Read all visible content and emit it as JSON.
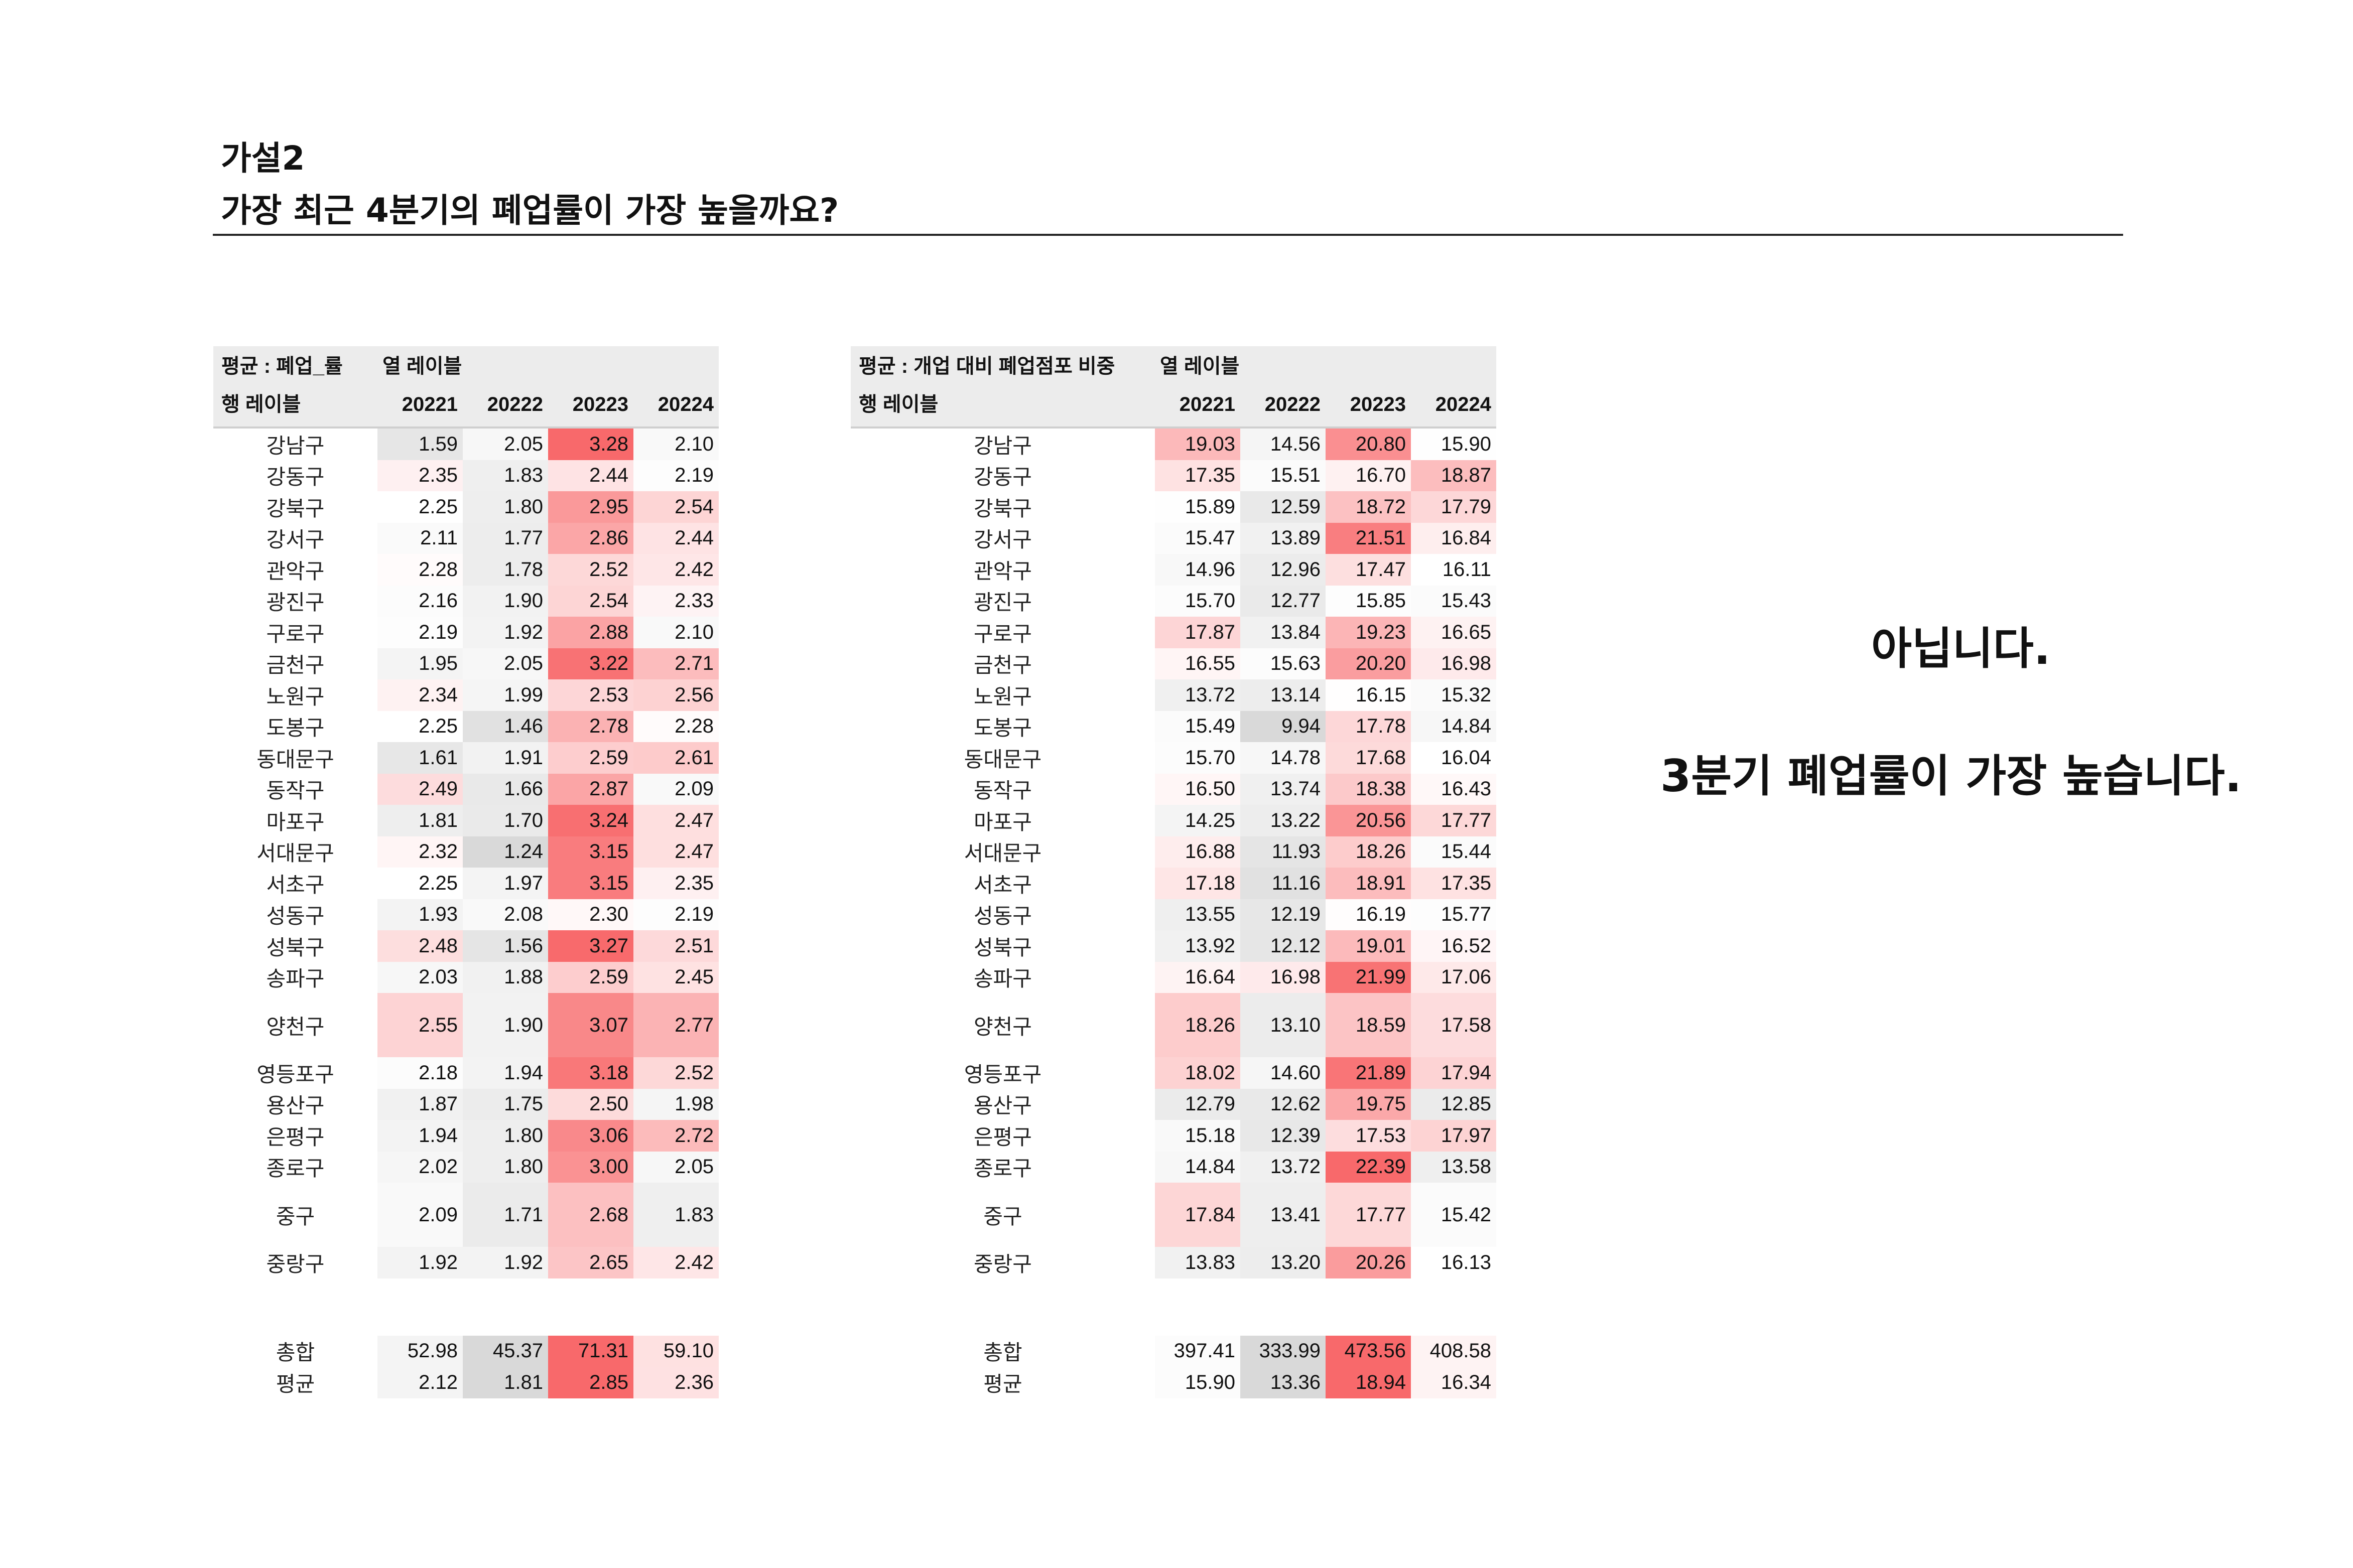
{
  "heading": {
    "line1": "가설2",
    "line2": "가장 최근 4분기의 폐업률이 가장 높을까요?"
  },
  "table_closure_rate": {
    "value_field": "평균 : 폐업_률",
    "column_label": "열 레이블",
    "row_label": "행 레이블",
    "columns": [
      "20221",
      "20222",
      "20223",
      "20224"
    ],
    "rows": [
      {
        "name": "강남구",
        "values": [
          "1.59",
          "2.05",
          "3.28",
          "2.10"
        ]
      },
      {
        "name": "강동구",
        "values": [
          "2.35",
          "1.83",
          "2.44",
          "2.19"
        ]
      },
      {
        "name": "강북구",
        "values": [
          "2.25",
          "1.80",
          "2.95",
          "2.54"
        ]
      },
      {
        "name": "강서구",
        "values": [
          "2.11",
          "1.77",
          "2.86",
          "2.44"
        ]
      },
      {
        "name": "관악구",
        "values": [
          "2.28",
          "1.78",
          "2.52",
          "2.42"
        ]
      },
      {
        "name": "광진구",
        "values": [
          "2.16",
          "1.90",
          "2.54",
          "2.33"
        ]
      },
      {
        "name": "구로구",
        "values": [
          "2.19",
          "1.92",
          "2.88",
          "2.10"
        ]
      },
      {
        "name": "금천구",
        "values": [
          "1.95",
          "2.05",
          "3.22",
          "2.71"
        ]
      },
      {
        "name": "노원구",
        "values": [
          "2.34",
          "1.99",
          "2.53",
          "2.56"
        ]
      },
      {
        "name": "도봉구",
        "values": [
          "2.25",
          "1.46",
          "2.78",
          "2.28"
        ]
      },
      {
        "name": "동대문구",
        "values": [
          "1.61",
          "1.91",
          "2.59",
          "2.61"
        ]
      },
      {
        "name": "동작구",
        "values": [
          "2.49",
          "1.66",
          "2.87",
          "2.09"
        ]
      },
      {
        "name": "마포구",
        "values": [
          "1.81",
          "1.70",
          "3.24",
          "2.47"
        ]
      },
      {
        "name": "서대문구",
        "values": [
          "2.32",
          "1.24",
          "3.15",
          "2.47"
        ]
      },
      {
        "name": "서초구",
        "values": [
          "2.25",
          "1.97",
          "3.15",
          "2.35"
        ]
      },
      {
        "name": "성동구",
        "values": [
          "1.93",
          "2.08",
          "2.30",
          "2.19"
        ]
      },
      {
        "name": "성북구",
        "values": [
          "2.48",
          "1.56",
          "3.27",
          "2.51"
        ]
      },
      {
        "name": "송파구",
        "values": [
          "2.03",
          "1.88",
          "2.59",
          "2.45"
        ]
      },
      {
        "name": "양천구",
        "values": [
          "2.55",
          "1.90",
          "3.07",
          "2.77"
        ]
      },
      {
        "name": "영등포구",
        "values": [
          "2.18",
          "1.94",
          "3.18",
          "2.52"
        ]
      },
      {
        "name": "용산구",
        "values": [
          "1.87",
          "1.75",
          "2.50",
          "1.98"
        ]
      },
      {
        "name": "은평구",
        "values": [
          "1.94",
          "1.80",
          "3.06",
          "2.72"
        ]
      },
      {
        "name": "종로구",
        "values": [
          "2.02",
          "1.80",
          "3.00",
          "2.05"
        ]
      },
      {
        "name": "중구",
        "values": [
          "2.09",
          "1.71",
          "2.68",
          "1.83"
        ]
      },
      {
        "name": "중랑구",
        "values": [
          "1.92",
          "1.92",
          "2.65",
          "2.42"
        ]
      }
    ],
    "totals": [
      {
        "name": "총합",
        "values": [
          "52.98",
          "45.37",
          "71.31",
          "59.10"
        ]
      },
      {
        "name": "평균",
        "values": [
          "2.12",
          "1.81",
          "2.85",
          "2.36"
        ]
      }
    ]
  },
  "table_closure_ratio": {
    "value_field": "평균 : 개업 대비 폐업점포 비중",
    "column_label": "열 레이블",
    "row_label": "행 레이블",
    "columns": [
      "20221",
      "20222",
      "20223",
      "20224"
    ],
    "rows": [
      {
        "name": "강남구",
        "values": [
          "19.03",
          "14.56",
          "20.80",
          "15.90"
        ]
      },
      {
        "name": "강동구",
        "values": [
          "17.35",
          "15.51",
          "16.70",
          "18.87"
        ]
      },
      {
        "name": "강북구",
        "values": [
          "15.89",
          "12.59",
          "18.72",
          "17.79"
        ]
      },
      {
        "name": "강서구",
        "values": [
          "15.47",
          "13.89",
          "21.51",
          "16.84"
        ]
      },
      {
        "name": "관악구",
        "values": [
          "14.96",
          "12.96",
          "17.47",
          "16.11"
        ]
      },
      {
        "name": "광진구",
        "values": [
          "15.70",
          "12.77",
          "15.85",
          "15.43"
        ]
      },
      {
        "name": "구로구",
        "values": [
          "17.87",
          "13.84",
          "19.23",
          "16.65"
        ]
      },
      {
        "name": "금천구",
        "values": [
          "16.55",
          "15.63",
          "20.20",
          "16.98"
        ]
      },
      {
        "name": "노원구",
        "values": [
          "13.72",
          "13.14",
          "16.15",
          "15.32"
        ]
      },
      {
        "name": "도봉구",
        "values": [
          "15.49",
          "9.94",
          "17.78",
          "14.84"
        ]
      },
      {
        "name": "동대문구",
        "values": [
          "15.70",
          "14.78",
          "17.68",
          "16.04"
        ]
      },
      {
        "name": "동작구",
        "values": [
          "16.50",
          "13.74",
          "18.38",
          "16.43"
        ]
      },
      {
        "name": "마포구",
        "values": [
          "14.25",
          "13.22",
          "20.56",
          "17.77"
        ]
      },
      {
        "name": "서대문구",
        "values": [
          "16.88",
          "11.93",
          "18.26",
          "15.44"
        ]
      },
      {
        "name": "서초구",
        "values": [
          "17.18",
          "11.16",
          "18.91",
          "17.35"
        ]
      },
      {
        "name": "성동구",
        "values": [
          "13.55",
          "12.19",
          "16.19",
          "15.77"
        ]
      },
      {
        "name": "성북구",
        "values": [
          "13.92",
          "12.12",
          "19.01",
          "16.52"
        ]
      },
      {
        "name": "송파구",
        "values": [
          "16.64",
          "16.98",
          "21.99",
          "17.06"
        ]
      },
      {
        "name": "양천구",
        "values": [
          "18.26",
          "13.10",
          "18.59",
          "17.58"
        ]
      },
      {
        "name": "영등포구",
        "values": [
          "18.02",
          "14.60",
          "21.89",
          "17.94"
        ]
      },
      {
        "name": "용산구",
        "values": [
          "12.79",
          "12.62",
          "19.75",
          "12.85"
        ]
      },
      {
        "name": "은평구",
        "values": [
          "15.18",
          "12.39",
          "17.53",
          "17.97"
        ]
      },
      {
        "name": "종로구",
        "values": [
          "14.84",
          "13.72",
          "22.39",
          "13.58"
        ]
      },
      {
        "name": "중구",
        "values": [
          "17.84",
          "13.41",
          "17.77",
          "15.42"
        ]
      },
      {
        "name": "중랑구",
        "values": [
          "13.83",
          "13.20",
          "20.26",
          "16.13"
        ]
      }
    ],
    "totals": [
      {
        "name": "총합",
        "values": [
          "397.41",
          "333.99",
          "473.56",
          "408.58"
        ]
      },
      {
        "name": "평균",
        "values": [
          "15.90",
          "13.36",
          "18.94",
          "16.34"
        ]
      }
    ]
  },
  "answer": {
    "line1": "아닙니다.",
    "line2": "3분기 폐업률이 가장 높습니다."
  },
  "colors": {
    "heat_low": "#d9d9d9",
    "heat_mid": "#ffffff",
    "heat_high": "#f8696b",
    "header_bg": "#ececec"
  }
}
